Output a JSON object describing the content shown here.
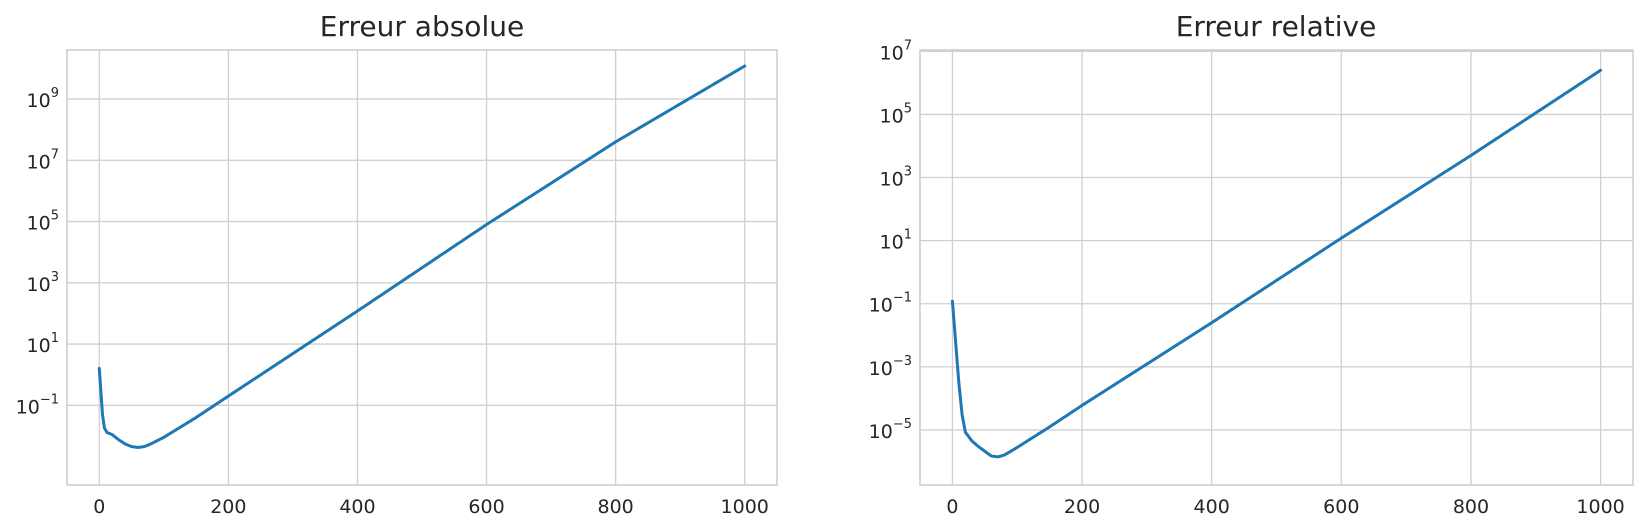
{
  "chart_data": [
    {
      "type": "line",
      "title": "Erreur absolue",
      "xlabel": "",
      "ylabel": "",
      "yscale": "log",
      "grid": true,
      "legend": "none",
      "color": "#1f77b4",
      "xlim": [
        -50,
        1050
      ],
      "ylim": [
        0.00025,
        40000000000
      ],
      "x_ticks": [
        0,
        200,
        400,
        600,
        800,
        1000
      ],
      "y_ticks": [
        {
          "value": 0.1,
          "base": "10",
          "exp": "−1"
        },
        {
          "value": 10,
          "base": "10",
          "exp": "1"
        },
        {
          "value": 1000,
          "base": "10",
          "exp": "3"
        },
        {
          "value": 100000,
          "base": "10",
          "exp": "5"
        },
        {
          "value": 10000000,
          "base": "10",
          "exp": "7"
        },
        {
          "value": 1000000000,
          "base": "10",
          "exp": "9"
        }
      ],
      "series": [
        {
          "name": "",
          "x": [
            0,
            5,
            8,
            12,
            20,
            30,
            40,
            50,
            60,
            70,
            80,
            100,
            150,
            200,
            400,
            600,
            800,
            1000
          ],
          "y": [
            1.6,
            0.05,
            0.018,
            0.013,
            0.011,
            0.0075,
            0.0055,
            0.0045,
            0.0042,
            0.0045,
            0.0055,
            0.009,
            0.04,
            0.2,
            120,
            80000,
            40000000,
            12000000000
          ]
        }
      ]
    },
    {
      "type": "line",
      "title": "Erreur relative",
      "xlabel": "",
      "ylabel": "",
      "yscale": "log",
      "grid": true,
      "legend": "none",
      "color": "#1f77b4",
      "xlim": [
        -50,
        1050
      ],
      "ylim": [
        1.8e-07,
        11000000
      ],
      "x_ticks": [
        0,
        200,
        400,
        600,
        800,
        1000
      ],
      "y_ticks": [
        {
          "value": 1e-05,
          "base": "10",
          "exp": "−5"
        },
        {
          "value": 0.001,
          "base": "10",
          "exp": "−3"
        },
        {
          "value": 0.1,
          "base": "10",
          "exp": "−1"
        },
        {
          "value": 10,
          "base": "10",
          "exp": "1"
        },
        {
          "value": 1000,
          "base": "10",
          "exp": "3"
        },
        {
          "value": 100000,
          "base": "10",
          "exp": "5"
        },
        {
          "value": 10000000,
          "base": "10",
          "exp": "7"
        }
      ],
      "series": [
        {
          "name": "",
          "x": [
            0,
            5,
            10,
            15,
            20,
            30,
            40,
            50,
            60,
            70,
            80,
            90,
            100,
            150,
            200,
            400,
            600,
            800,
            1000
          ],
          "y": [
            0.12,
            0.006,
            0.0003,
            3e-05,
            8.5e-06,
            4.5e-06,
            3e-06,
            2.1e-06,
            1.5e-06,
            1.4e-06,
            1.6e-06,
            2.1e-06,
            2.8e-06,
            1.25e-05,
            6e-05,
            0.025,
            12,
            5000,
            2500000
          ]
        }
      ]
    }
  ]
}
